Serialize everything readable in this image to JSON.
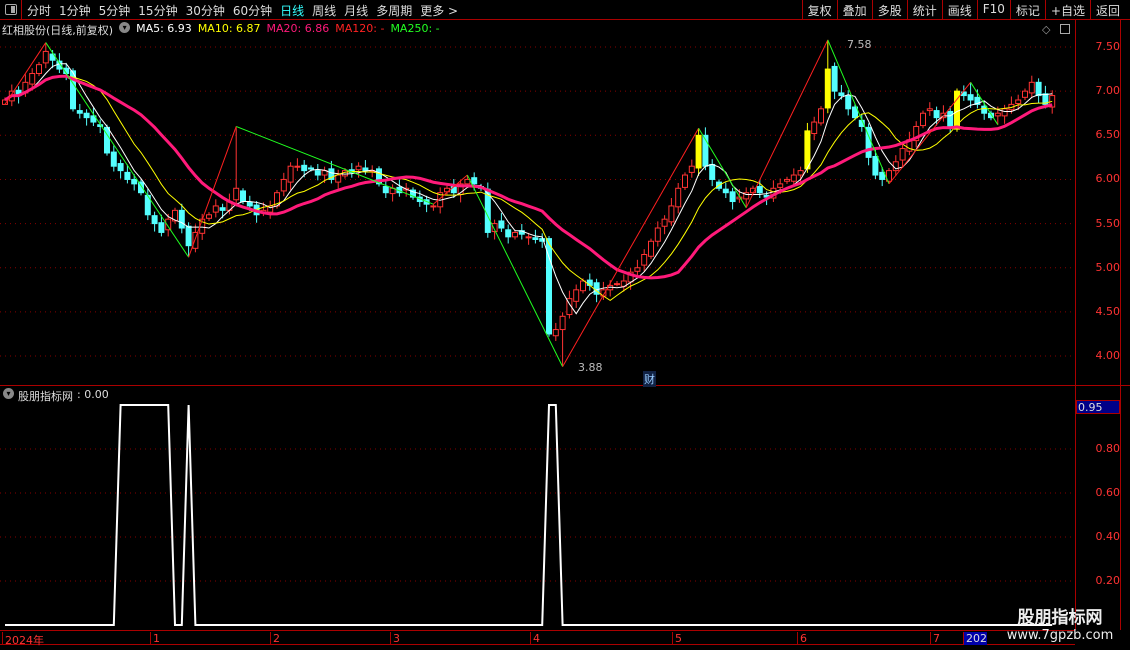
{
  "toolbar": {
    "tabs": [
      "分时",
      "1分钟",
      "5分钟",
      "15分钟",
      "30分钟",
      "60分钟",
      "日线",
      "周线",
      "月线",
      "多周期",
      "更多 >"
    ],
    "active_tab": "日线",
    "right_buttons": [
      "复权",
      "叠加",
      "多股",
      "统计",
      "画线",
      "F10",
      "标记",
      "+自选",
      "返回"
    ]
  },
  "legend": {
    "title": "红相股份(日线,前复权)",
    "ma5": "MA5: 6.93",
    "ma10": "MA10: 6.87",
    "ma20": "MA20: 6.86",
    "ma120": "MA120: -",
    "ma250": "MA250: -"
  },
  "indicator": {
    "title": "股朋指标网",
    "value": ": 0.00",
    "current_label": "0.95"
  },
  "price_axis": [
    "7.50",
    "7.00",
    "6.50",
    "6.00",
    "5.50",
    "5.00",
    "4.50",
    "4.00"
  ],
  "indicator_axis": [
    "0.80",
    "0.60",
    "0.40",
    "0.20"
  ],
  "date_axis": [
    "2024年",
    "1",
    "2",
    "3",
    "4",
    "5",
    "6",
    "7",
    "202"
  ],
  "annotations": {
    "high": "7.58",
    "low": "3.88",
    "finance_badge": "财"
  },
  "watermark": {
    "title": "股朋指标网",
    "url": "www.7gpzb.com"
  },
  "colors": {
    "up": "#ff3333",
    "down": "#54ffff",
    "ma5": "#ffffff",
    "ma10": "#ffff00",
    "ma20": "#ff1a7a",
    "signal": "#ffff00",
    "grid": "#880000"
  },
  "chart_data": [
    {
      "type": "candlestick",
      "ylim": [
        3.8,
        7.65
      ],
      "closes": [
        6.9,
        7.0,
        6.95,
        7.1,
        7.2,
        7.3,
        7.45,
        7.35,
        7.25,
        7.2,
        6.8,
        6.75,
        6.7,
        6.65,
        6.6,
        6.3,
        6.15,
        6.1,
        6.0,
        5.95,
        5.85,
        5.6,
        5.5,
        5.4,
        5.55,
        5.65,
        5.45,
        5.25,
        5.4,
        5.55,
        5.6,
        5.7,
        5.65,
        5.75,
        5.9,
        5.75,
        5.7,
        5.6,
        5.65,
        5.7,
        5.85,
        6.0,
        6.15,
        6.15,
        6.1,
        6.12,
        6.05,
        6.1,
        6.0,
        6.05,
        6.1,
        6.08,
        6.15,
        6.1,
        6.1,
        5.95,
        5.85,
        5.9,
        5.85,
        5.9,
        5.8,
        5.75,
        5.72,
        5.7,
        5.85,
        5.9,
        5.85,
        5.95,
        6.0,
        5.95,
        5.9,
        5.4,
        5.5,
        5.45,
        5.35,
        5.4,
        5.38,
        5.35,
        5.32,
        5.3,
        4.25,
        4.3,
        4.45,
        4.65,
        4.75,
        4.85,
        4.8,
        4.7,
        4.75,
        4.8,
        4.82,
        4.85,
        4.95,
        5.0,
        5.15,
        5.3,
        5.45,
        5.55,
        5.7,
        5.9,
        6.05,
        6.15,
        6.5,
        6.15,
        6.0,
        5.9,
        5.85,
        5.75,
        5.8,
        5.85,
        5.9,
        5.85,
        5.8,
        5.9,
        5.95,
        6.0,
        6.05,
        6.1,
        6.55,
        6.65,
        6.8,
        7.25,
        7.0,
        6.95,
        6.8,
        6.7,
        6.6,
        6.25,
        6.05,
        6.0,
        6.1,
        6.2,
        6.35,
        6.45,
        6.6,
        6.75,
        6.8,
        6.7,
        6.75,
        6.6,
        7.0,
        6.95,
        6.9,
        6.85,
        6.75,
        6.7,
        6.75,
        6.8,
        6.85,
        6.9,
        7.0,
        7.1,
        6.95,
        6.85,
        6.95
      ],
      "signal_bars": [
        102,
        118,
        121,
        140
      ],
      "zigzag": [
        [
          0,
          6.85
        ],
        [
          6,
          7.55
        ],
        [
          27,
          5.12
        ],
        [
          34,
          6.6
        ],
        [
          63,
          5.72
        ],
        [
          68,
          6.05
        ],
        [
          82,
          3.88
        ],
        [
          102,
          6.58
        ],
        [
          109,
          5.68
        ],
        [
          121,
          7.58
        ],
        [
          130,
          5.95
        ],
        [
          142,
          7.1
        ],
        [
          146,
          6.62
        ]
      ],
      "moving_averages": [
        5,
        10,
        20
      ]
    },
    {
      "type": "line",
      "name": "股朋指标网",
      "ylim": [
        0,
        1
      ],
      "ones": [
        17,
        18,
        19,
        20,
        21,
        22,
        23,
        24,
        27,
        80,
        81
      ],
      "length": 155
    }
  ]
}
